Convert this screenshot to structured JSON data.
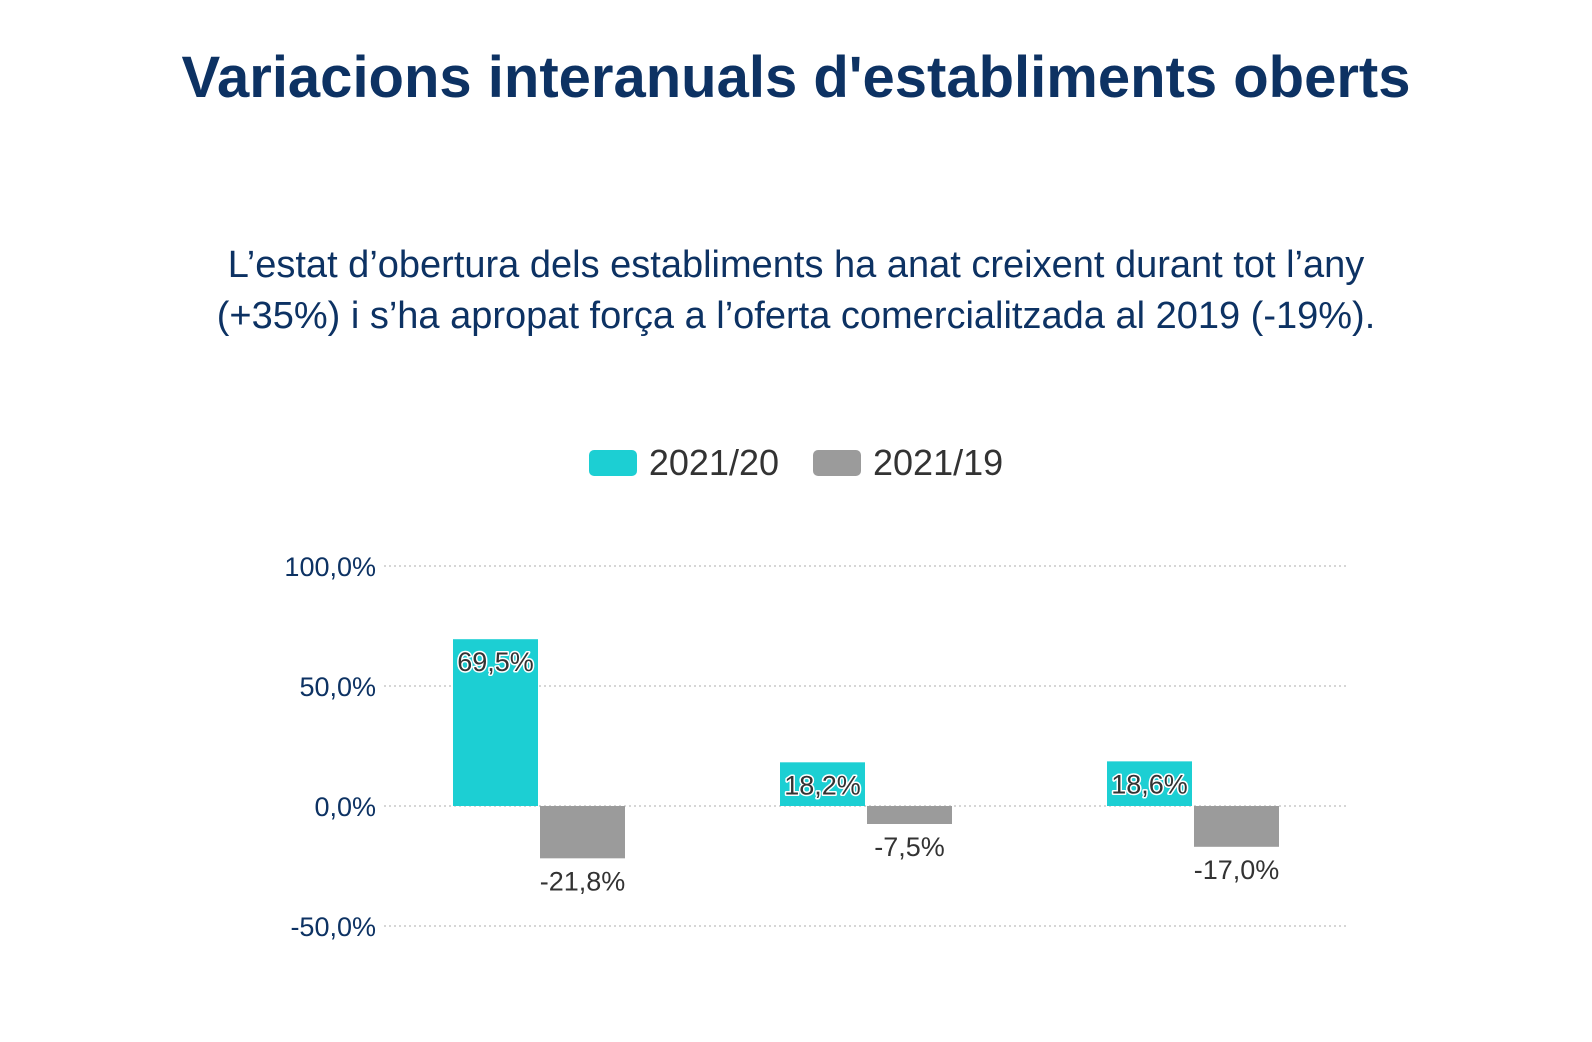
{
  "chart_data": {
    "type": "bar",
    "title": "Variacions interanuals d'establiments oberts",
    "subtitle": "L’estat d’obertura dels establiments ha anat creixent durant tot l’any (+35%) i s’ha apropat força a l’oferta comercialitzada al 2019 (-19%).",
    "categories": [
      "",
      "",
      ""
    ],
    "series": [
      {
        "name": "2021/20",
        "color": "#1ccfd3",
        "values": [
          69.5,
          18.2,
          18.6
        ],
        "labels": [
          "69,5%",
          "18,2%",
          "18,6%"
        ]
      },
      {
        "name": "2021/19",
        "color": "#9b9b9b",
        "values": [
          -21.8,
          -7.5,
          -17.0
        ],
        "labels": [
          "-21,8%",
          "-7,5%",
          "-17,0%"
        ]
      }
    ],
    "ylim": [
      -50,
      100
    ],
    "yticks": [
      {
        "value": 100,
        "label": "100,0%"
      },
      {
        "value": 50,
        "label": "50,0%"
      },
      {
        "value": 0,
        "label": "0,0%"
      },
      {
        "value": -50,
        "label": "-50,0%"
      }
    ],
    "xlabel": "",
    "ylabel": "",
    "grid": "horizontal dotted",
    "legend_position": "top-center"
  }
}
